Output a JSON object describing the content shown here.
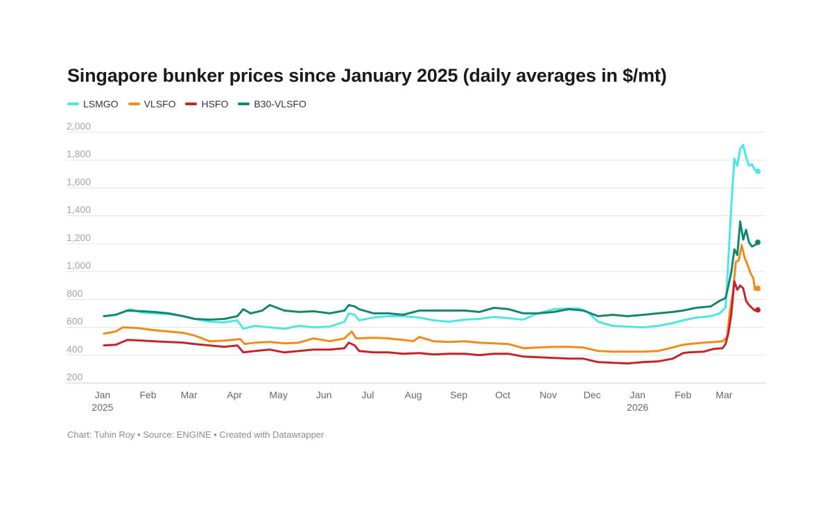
{
  "chart_data": {
    "type": "line",
    "title": "Singapore bunker prices since January 2025 (daily averages in $/mt)",
    "credits": "Chart: Tuhin Roy • Source: ENGINE • Created with Datawrapper",
    "xlabel": "",
    "ylabel": "",
    "ylim": [
      200,
      2000
    ],
    "y_ticks": [
      {
        "value": 200,
        "label": "200"
      },
      {
        "value": 400,
        "label": "400"
      },
      {
        "value": 600,
        "label": "600"
      },
      {
        "value": 800,
        "label": "800"
      },
      {
        "value": 1000,
        "label": "1,000"
      },
      {
        "value": 1200,
        "label": "1,200"
      },
      {
        "value": 1400,
        "label": "1,400"
      },
      {
        "value": 1600,
        "label": "1,600"
      },
      {
        "value": 1800,
        "label": "1,800"
      },
      {
        "value": 2000,
        "label": "2,000"
      }
    ],
    "xlim": [
      "2025-01-02",
      "2026-03-24"
    ],
    "x_ticks": [
      {
        "date": "2025-01-01",
        "label": "Jan",
        "sublabel": "2025"
      },
      {
        "date": "2025-02-01",
        "label": "Feb"
      },
      {
        "date": "2025-03-01",
        "label": "Mar"
      },
      {
        "date": "2025-04-01",
        "label": "Apr"
      },
      {
        "date": "2025-05-01",
        "label": "May"
      },
      {
        "date": "2025-06-01",
        "label": "Jun"
      },
      {
        "date": "2025-07-01",
        "label": "Jul"
      },
      {
        "date": "2025-08-01",
        "label": "Aug"
      },
      {
        "date": "2025-09-01",
        "label": "Sep"
      },
      {
        "date": "2025-10-01",
        "label": "Oct"
      },
      {
        "date": "2025-11-01",
        "label": "Nov"
      },
      {
        "date": "2025-12-01",
        "label": "Dec"
      },
      {
        "date": "2026-01-01",
        "label": "Jan",
        "sublabel": "2026"
      },
      {
        "date": "2026-02-01",
        "label": "Feb"
      },
      {
        "date": "2026-03-01",
        "label": "Mar"
      }
    ],
    "grid": "horizontal",
    "legend_position": "top-left",
    "series": [
      {
        "name": "LSMGO",
        "color": "#4de6e6",
        "points": [
          [
            "2025-01-02",
            680
          ],
          [
            "2025-01-10",
            690
          ],
          [
            "2025-01-20",
            730
          ],
          [
            "2025-01-28",
            705
          ],
          [
            "2025-02-05",
            700
          ],
          [
            "2025-02-15",
            695
          ],
          [
            "2025-02-25",
            680
          ],
          [
            "2025-03-05",
            660
          ],
          [
            "2025-03-15",
            640
          ],
          [
            "2025-03-25",
            635
          ],
          [
            "2025-04-03",
            650
          ],
          [
            "2025-04-07",
            590
          ],
          [
            "2025-04-15",
            610
          ],
          [
            "2025-04-25",
            600
          ],
          [
            "2025-05-05",
            590
          ],
          [
            "2025-05-15",
            610
          ],
          [
            "2025-05-25",
            600
          ],
          [
            "2025-06-05",
            605
          ],
          [
            "2025-06-15",
            640
          ],
          [
            "2025-06-18",
            700
          ],
          [
            "2025-06-22",
            690
          ],
          [
            "2025-06-25",
            650
          ],
          [
            "2025-07-05",
            670
          ],
          [
            "2025-07-15",
            680
          ],
          [
            "2025-07-25",
            680
          ],
          [
            "2025-08-05",
            670
          ],
          [
            "2025-08-15",
            650
          ],
          [
            "2025-08-25",
            640
          ],
          [
            "2025-09-05",
            655
          ],
          [
            "2025-09-15",
            660
          ],
          [
            "2025-09-25",
            675
          ],
          [
            "2025-10-05",
            665
          ],
          [
            "2025-10-15",
            655
          ],
          [
            "2025-10-25",
            700
          ],
          [
            "2025-11-05",
            730
          ],
          [
            "2025-11-15",
            735
          ],
          [
            "2025-11-22",
            735
          ],
          [
            "2025-11-28",
            710
          ],
          [
            "2025-12-05",
            640
          ],
          [
            "2025-12-15",
            610
          ],
          [
            "2025-12-25",
            605
          ],
          [
            "2026-01-05",
            600
          ],
          [
            "2026-01-15",
            610
          ],
          [
            "2026-01-25",
            630
          ],
          [
            "2026-02-01",
            650
          ],
          [
            "2026-02-10",
            670
          ],
          [
            "2026-02-20",
            680
          ],
          [
            "2026-02-26",
            700
          ],
          [
            "2026-03-02",
            740
          ],
          [
            "2026-03-04",
            1100
          ],
          [
            "2026-03-06",
            1480
          ],
          [
            "2026-03-08",
            1810
          ],
          [
            "2026-03-10",
            1760
          ],
          [
            "2026-03-12",
            1880
          ],
          [
            "2026-03-14",
            1910
          ],
          [
            "2026-03-16",
            1820
          ],
          [
            "2026-03-18",
            1760
          ],
          [
            "2026-03-20",
            1770
          ],
          [
            "2026-03-22",
            1730
          ],
          [
            "2026-03-24",
            1720
          ]
        ]
      },
      {
        "name": "VLSFO",
        "color": "#f28a17",
        "points": [
          [
            "2025-01-02",
            555
          ],
          [
            "2025-01-10",
            570
          ],
          [
            "2025-01-15",
            600
          ],
          [
            "2025-01-25",
            595
          ],
          [
            "2025-02-05",
            580
          ],
          [
            "2025-02-15",
            570
          ],
          [
            "2025-02-25",
            560
          ],
          [
            "2025-03-05",
            540
          ],
          [
            "2025-03-15",
            500
          ],
          [
            "2025-03-25",
            505
          ],
          [
            "2025-04-05",
            515
          ],
          [
            "2025-04-08",
            480
          ],
          [
            "2025-04-15",
            490
          ],
          [
            "2025-04-25",
            495
          ],
          [
            "2025-05-05",
            485
          ],
          [
            "2025-05-15",
            490
          ],
          [
            "2025-05-25",
            520
          ],
          [
            "2025-06-05",
            500
          ],
          [
            "2025-06-15",
            520
          ],
          [
            "2025-06-20",
            570
          ],
          [
            "2025-06-23",
            520
          ],
          [
            "2025-07-05",
            525
          ],
          [
            "2025-07-15",
            520
          ],
          [
            "2025-07-25",
            510
          ],
          [
            "2025-08-01",
            500
          ],
          [
            "2025-08-05",
            530
          ],
          [
            "2025-08-15",
            500
          ],
          [
            "2025-08-25",
            495
          ],
          [
            "2025-09-05",
            500
          ],
          [
            "2025-09-15",
            490
          ],
          [
            "2025-09-25",
            485
          ],
          [
            "2025-10-05",
            480
          ],
          [
            "2025-10-15",
            450
          ],
          [
            "2025-10-25",
            455
          ],
          [
            "2025-11-05",
            460
          ],
          [
            "2025-11-15",
            460
          ],
          [
            "2025-11-25",
            455
          ],
          [
            "2025-12-05",
            430
          ],
          [
            "2025-12-15",
            425
          ],
          [
            "2025-12-25",
            425
          ],
          [
            "2026-01-05",
            425
          ],
          [
            "2026-01-15",
            430
          ],
          [
            "2026-01-25",
            455
          ],
          [
            "2026-02-01",
            475
          ],
          [
            "2026-02-05",
            480
          ],
          [
            "2026-02-15",
            490
          ],
          [
            "2026-02-22",
            495
          ],
          [
            "2026-02-28",
            500
          ],
          [
            "2026-03-03",
            530
          ],
          [
            "2026-03-05",
            720
          ],
          [
            "2026-03-07",
            850
          ],
          [
            "2026-03-09",
            1070
          ],
          [
            "2026-03-11",
            1080
          ],
          [
            "2026-03-13",
            1190
          ],
          [
            "2026-03-15",
            1100
          ],
          [
            "2026-03-17",
            1050
          ],
          [
            "2026-03-19",
            990
          ],
          [
            "2026-03-21",
            950
          ],
          [
            "2026-03-22",
            870
          ],
          [
            "2026-03-24",
            880
          ]
        ]
      },
      {
        "name": "HSFO",
        "color": "#c4232b",
        "points": [
          [
            "2025-01-02",
            470
          ],
          [
            "2025-01-10",
            475
          ],
          [
            "2025-01-18",
            510
          ],
          [
            "2025-01-28",
            505
          ],
          [
            "2025-02-05",
            500
          ],
          [
            "2025-02-15",
            495
          ],
          [
            "2025-02-25",
            490
          ],
          [
            "2025-03-05",
            480
          ],
          [
            "2025-03-15",
            470
          ],
          [
            "2025-03-25",
            460
          ],
          [
            "2025-04-03",
            470
          ],
          [
            "2025-04-07",
            420
          ],
          [
            "2025-04-15",
            430
          ],
          [
            "2025-04-25",
            440
          ],
          [
            "2025-05-05",
            420
          ],
          [
            "2025-05-15",
            430
          ],
          [
            "2025-05-25",
            440
          ],
          [
            "2025-06-05",
            440
          ],
          [
            "2025-06-15",
            450
          ],
          [
            "2025-06-18",
            490
          ],
          [
            "2025-06-22",
            470
          ],
          [
            "2025-06-25",
            430
          ],
          [
            "2025-07-05",
            420
          ],
          [
            "2025-07-15",
            420
          ],
          [
            "2025-07-25",
            410
          ],
          [
            "2025-08-05",
            415
          ],
          [
            "2025-08-15",
            405
          ],
          [
            "2025-08-25",
            410
          ],
          [
            "2025-09-05",
            410
          ],
          [
            "2025-09-15",
            400
          ],
          [
            "2025-09-25",
            410
          ],
          [
            "2025-10-05",
            410
          ],
          [
            "2025-10-15",
            390
          ],
          [
            "2025-10-25",
            385
          ],
          [
            "2025-11-05",
            380
          ],
          [
            "2025-11-15",
            375
          ],
          [
            "2025-11-25",
            375
          ],
          [
            "2025-12-05",
            350
          ],
          [
            "2025-12-15",
            345
          ],
          [
            "2025-12-25",
            340
          ],
          [
            "2026-01-05",
            350
          ],
          [
            "2026-01-15",
            355
          ],
          [
            "2026-01-25",
            375
          ],
          [
            "2026-02-01",
            415
          ],
          [
            "2026-02-05",
            420
          ],
          [
            "2026-02-15",
            425
          ],
          [
            "2026-02-22",
            445
          ],
          [
            "2026-02-28",
            450
          ],
          [
            "2026-03-02",
            480
          ],
          [
            "2026-03-04",
            560
          ],
          [
            "2026-03-06",
            700
          ],
          [
            "2026-03-08",
            930
          ],
          [
            "2026-03-10",
            870
          ],
          [
            "2026-03-12",
            900
          ],
          [
            "2026-03-14",
            880
          ],
          [
            "2026-03-16",
            790
          ],
          [
            "2026-03-18",
            760
          ],
          [
            "2026-03-20",
            740
          ],
          [
            "2026-03-22",
            720
          ],
          [
            "2026-03-24",
            725
          ]
        ]
      },
      {
        "name": "B30-VLSFO",
        "color": "#12876d",
        "points": [
          [
            "2025-01-02",
            680
          ],
          [
            "2025-01-10",
            690
          ],
          [
            "2025-01-18",
            720
          ],
          [
            "2025-01-28",
            715
          ],
          [
            "2025-02-05",
            710
          ],
          [
            "2025-02-15",
            700
          ],
          [
            "2025-02-25",
            680
          ],
          [
            "2025-03-05",
            660
          ],
          [
            "2025-03-15",
            655
          ],
          [
            "2025-03-25",
            660
          ],
          [
            "2025-04-03",
            680
          ],
          [
            "2025-04-07",
            730
          ],
          [
            "2025-04-12",
            700
          ],
          [
            "2025-04-20",
            720
          ],
          [
            "2025-04-25",
            760
          ],
          [
            "2025-05-05",
            720
          ],
          [
            "2025-05-15",
            710
          ],
          [
            "2025-05-25",
            715
          ],
          [
            "2025-06-05",
            700
          ],
          [
            "2025-06-15",
            720
          ],
          [
            "2025-06-18",
            760
          ],
          [
            "2025-06-22",
            750
          ],
          [
            "2025-06-25",
            730
          ],
          [
            "2025-07-05",
            700
          ],
          [
            "2025-07-15",
            700
          ],
          [
            "2025-07-25",
            690
          ],
          [
            "2025-08-05",
            720
          ],
          [
            "2025-08-15",
            720
          ],
          [
            "2025-08-25",
            720
          ],
          [
            "2025-09-05",
            720
          ],
          [
            "2025-09-15",
            710
          ],
          [
            "2025-09-25",
            740
          ],
          [
            "2025-10-05",
            730
          ],
          [
            "2025-10-15",
            700
          ],
          [
            "2025-10-25",
            700
          ],
          [
            "2025-11-05",
            710
          ],
          [
            "2025-11-15",
            730
          ],
          [
            "2025-11-25",
            720
          ],
          [
            "2025-12-05",
            680
          ],
          [
            "2025-12-15",
            690
          ],
          [
            "2025-12-25",
            680
          ],
          [
            "2026-01-05",
            690
          ],
          [
            "2026-01-15",
            700
          ],
          [
            "2026-01-25",
            710
          ],
          [
            "2026-02-01",
            720
          ],
          [
            "2026-02-10",
            740
          ],
          [
            "2026-02-20",
            750
          ],
          [
            "2026-02-26",
            790
          ],
          [
            "2026-03-02",
            810
          ],
          [
            "2026-03-04",
            900
          ],
          [
            "2026-03-06",
            1000
          ],
          [
            "2026-03-08",
            1160
          ],
          [
            "2026-03-10",
            1120
          ],
          [
            "2026-03-12",
            1360
          ],
          [
            "2026-03-14",
            1230
          ],
          [
            "2026-03-16",
            1300
          ],
          [
            "2026-03-18",
            1210
          ],
          [
            "2026-03-20",
            1180
          ],
          [
            "2026-03-22",
            1190
          ],
          [
            "2026-03-24",
            1210
          ]
        ]
      }
    ]
  }
}
